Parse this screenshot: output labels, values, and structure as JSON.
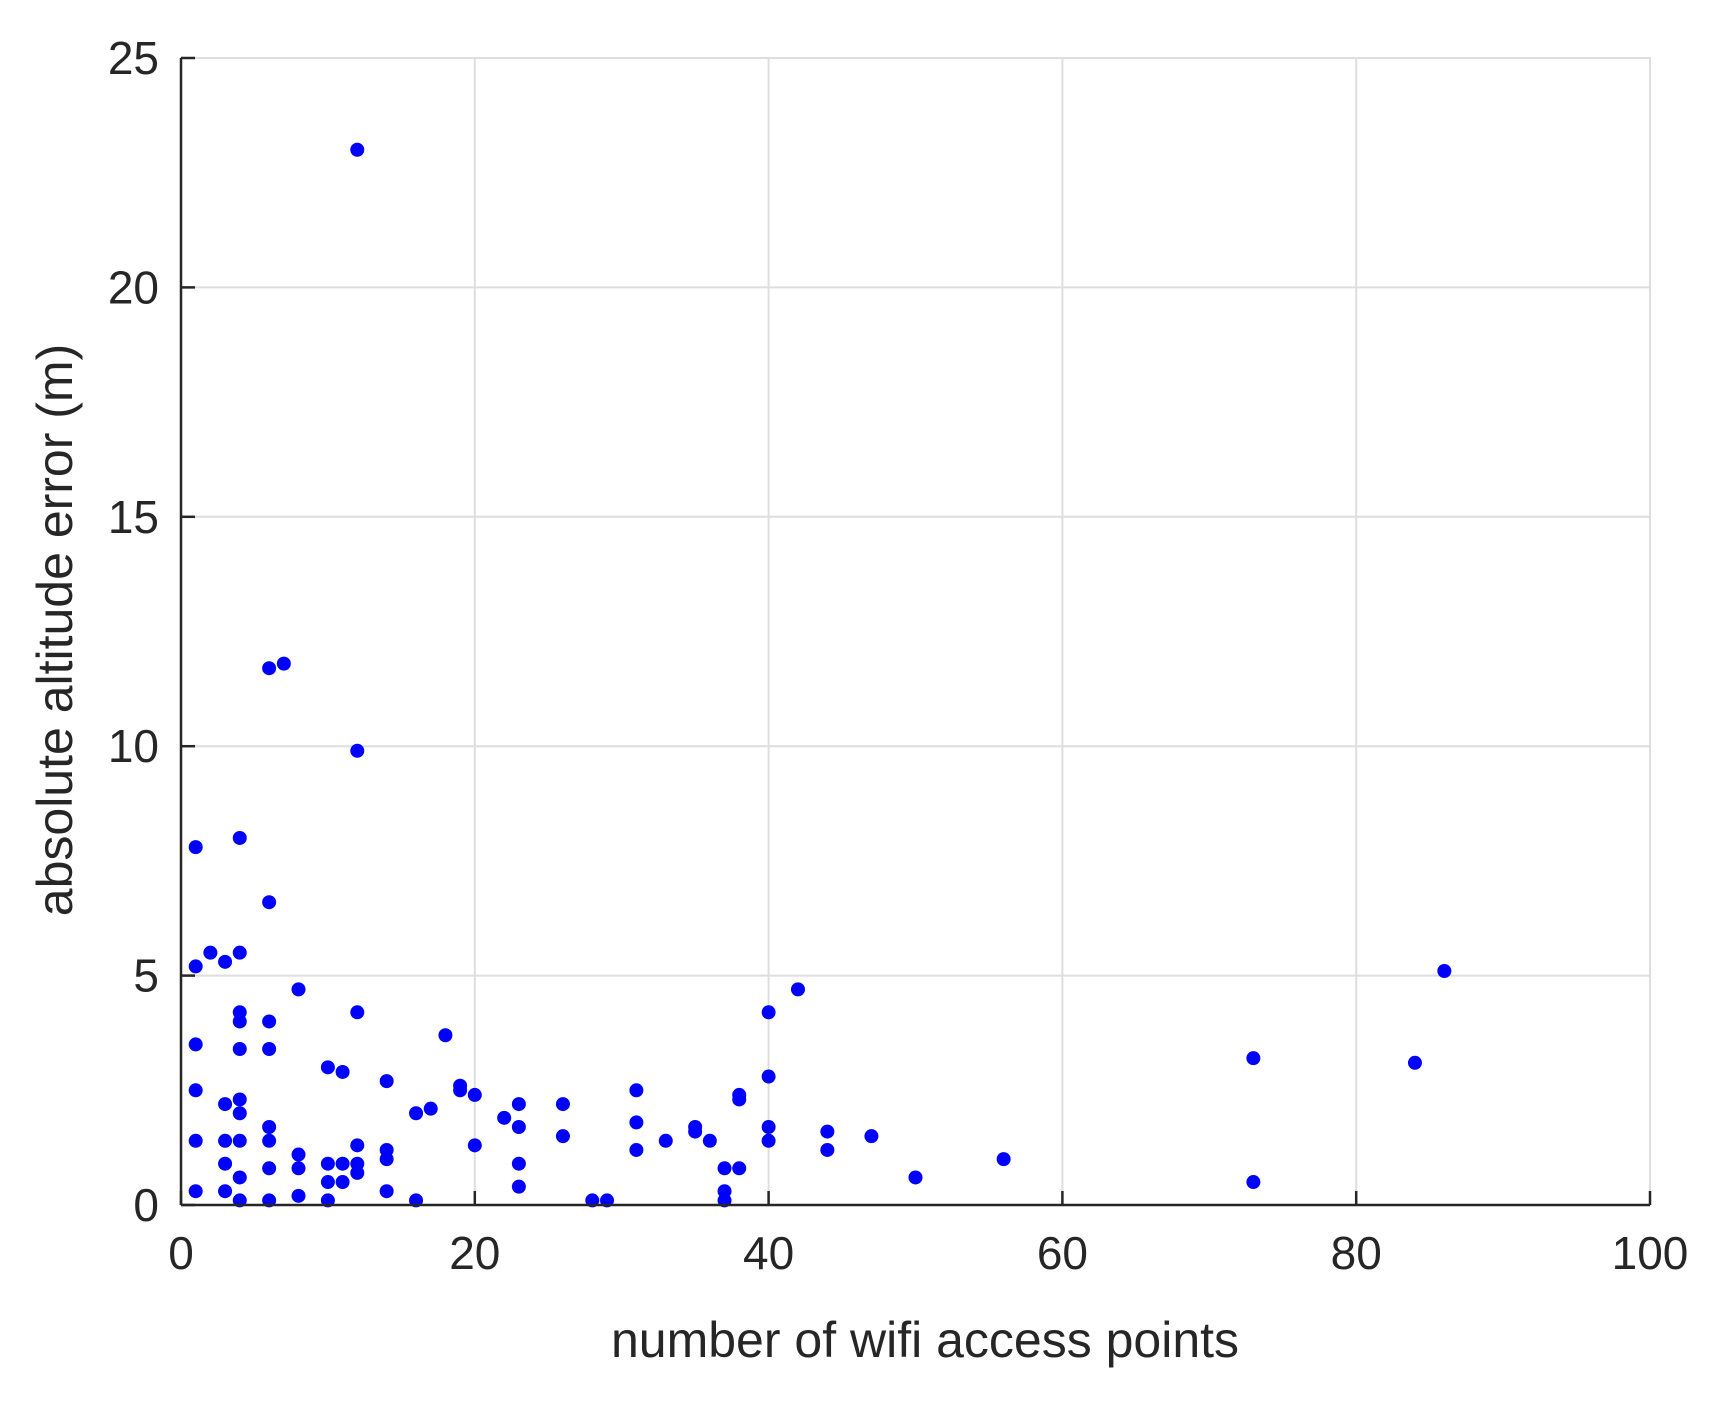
{
  "chart_data": {
    "type": "scatter",
    "title": "",
    "xlabel": "number of wifi access points",
    "ylabel": "absolute altitude error (m)",
    "xlim": [
      0,
      100
    ],
    "ylim": [
      0,
      25
    ],
    "xticks": [
      "0",
      "20",
      "40",
      "60",
      "80",
      "100"
    ],
    "yticks": [
      "0",
      "5",
      "10",
      "15",
      "20",
      "25"
    ],
    "grid": true,
    "marker_color": "#0000ff",
    "points": [
      {
        "x": 12,
        "y": 23.0
      },
      {
        "x": 6,
        "y": 11.7
      },
      {
        "x": 7,
        "y": 11.8
      },
      {
        "x": 12,
        "y": 9.9
      },
      {
        "x": 1,
        "y": 7.8
      },
      {
        "x": 4,
        "y": 8.0
      },
      {
        "x": 6,
        "y": 6.6
      },
      {
        "x": 1,
        "y": 5.2
      },
      {
        "x": 2,
        "y": 5.5
      },
      {
        "x": 3,
        "y": 5.3
      },
      {
        "x": 4,
        "y": 5.5
      },
      {
        "x": 8,
        "y": 4.7
      },
      {
        "x": 12,
        "y": 4.2
      },
      {
        "x": 4,
        "y": 4.2
      },
      {
        "x": 4,
        "y": 4.0
      },
      {
        "x": 6,
        "y": 4.0
      },
      {
        "x": 1,
        "y": 3.5
      },
      {
        "x": 4,
        "y": 3.4
      },
      {
        "x": 6,
        "y": 3.4
      },
      {
        "x": 10,
        "y": 3.0
      },
      {
        "x": 11,
        "y": 2.9
      },
      {
        "x": 14,
        "y": 2.7
      },
      {
        "x": 18,
        "y": 3.7
      },
      {
        "x": 19,
        "y": 2.6
      },
      {
        "x": 19,
        "y": 2.5
      },
      {
        "x": 20,
        "y": 2.4
      },
      {
        "x": 1,
        "y": 2.5
      },
      {
        "x": 3,
        "y": 2.2
      },
      {
        "x": 4,
        "y": 2.3
      },
      {
        "x": 4,
        "y": 2.0
      },
      {
        "x": 16,
        "y": 2.0
      },
      {
        "x": 17,
        "y": 2.1
      },
      {
        "x": 22,
        "y": 1.9
      },
      {
        "x": 23,
        "y": 2.2
      },
      {
        "x": 23,
        "y": 1.7
      },
      {
        "x": 26,
        "y": 2.2
      },
      {
        "x": 26,
        "y": 1.5
      },
      {
        "x": 31,
        "y": 2.5
      },
      {
        "x": 31,
        "y": 1.8
      },
      {
        "x": 31,
        "y": 1.2
      },
      {
        "x": 33,
        "y": 1.4
      },
      {
        "x": 35,
        "y": 1.7
      },
      {
        "x": 35,
        "y": 1.6
      },
      {
        "x": 36,
        "y": 1.4
      },
      {
        "x": 37,
        "y": 0.8
      },
      {
        "x": 38,
        "y": 0.8
      },
      {
        "x": 38,
        "y": 2.4
      },
      {
        "x": 38,
        "y": 2.3
      },
      {
        "x": 40,
        "y": 4.2
      },
      {
        "x": 40,
        "y": 2.8
      },
      {
        "x": 40,
        "y": 1.7
      },
      {
        "x": 40,
        "y": 1.4
      },
      {
        "x": 42,
        "y": 4.7
      },
      {
        "x": 44,
        "y": 1.6
      },
      {
        "x": 44,
        "y": 1.2
      },
      {
        "x": 47,
        "y": 1.5
      },
      {
        "x": 50,
        "y": 0.6
      },
      {
        "x": 56,
        "y": 1.0
      },
      {
        "x": 73,
        "y": 3.2
      },
      {
        "x": 73,
        "y": 0.5
      },
      {
        "x": 84,
        "y": 3.1
      },
      {
        "x": 86,
        "y": 5.1
      },
      {
        "x": 1,
        "y": 1.4
      },
      {
        "x": 1,
        "y": 0.3
      },
      {
        "x": 3,
        "y": 1.4
      },
      {
        "x": 3,
        "y": 0.9
      },
      {
        "x": 3,
        "y": 0.3
      },
      {
        "x": 4,
        "y": 1.4
      },
      {
        "x": 4,
        "y": 0.6
      },
      {
        "x": 4,
        "y": 0.1
      },
      {
        "x": 6,
        "y": 1.7
      },
      {
        "x": 6,
        "y": 1.4
      },
      {
        "x": 6,
        "y": 0.8
      },
      {
        "x": 6,
        "y": 0.1
      },
      {
        "x": 8,
        "y": 1.1
      },
      {
        "x": 8,
        "y": 0.8
      },
      {
        "x": 8,
        "y": 0.2
      },
      {
        "x": 10,
        "y": 0.9
      },
      {
        "x": 10,
        "y": 0.5
      },
      {
        "x": 10,
        "y": 0.1
      },
      {
        "x": 11,
        "y": 0.9
      },
      {
        "x": 11,
        "y": 0.5
      },
      {
        "x": 12,
        "y": 1.3
      },
      {
        "x": 12,
        "y": 0.9
      },
      {
        "x": 12,
        "y": 0.7
      },
      {
        "x": 14,
        "y": 1.2
      },
      {
        "x": 14,
        "y": 1.0
      },
      {
        "x": 14,
        "y": 0.3
      },
      {
        "x": 16,
        "y": 0.1
      },
      {
        "x": 20,
        "y": 1.3
      },
      {
        "x": 23,
        "y": 0.9
      },
      {
        "x": 23,
        "y": 0.4
      },
      {
        "x": 28,
        "y": 0.1
      },
      {
        "x": 29,
        "y": 0.1
      },
      {
        "x": 37,
        "y": 0.3
      },
      {
        "x": 37,
        "y": 0.1
      }
    ]
  }
}
